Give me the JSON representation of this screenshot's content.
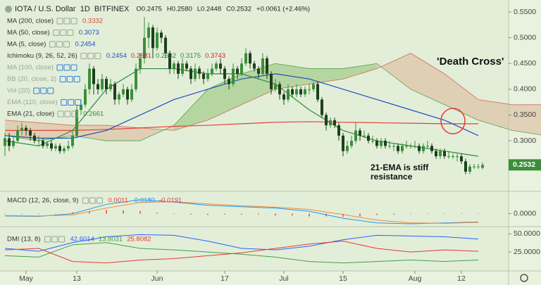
{
  "chart_data": {
    "type": "candlestick",
    "title": "IOTA / U.S. Dollar  1D  BITFINEX",
    "ohlc_header": [
      "O0.2475",
      "H0.2580",
      "L0.2448",
      "C0.2532",
      "+0.0061 (+2.46%)"
    ],
    "up_color": "#3a8f3a",
    "down_color": "#1d3f1d",
    "xlim": [
      -1,
      119
    ],
    "ylim": [
      0.22,
      0.57
    ],
    "yticks": [
      {
        "value": 0.55,
        "label": "0.5500"
      },
      {
        "value": 0.5,
        "label": "0.5000"
      },
      {
        "value": 0.45,
        "label": "0.4500"
      },
      {
        "value": 0.4,
        "label": "0.4000"
      },
      {
        "value": 0.35,
        "label": "0.3500"
      },
      {
        "value": 0.3,
        "label": "0.3000"
      }
    ],
    "xticks": [
      {
        "value": 5,
        "label": "May"
      },
      {
        "value": 17,
        "label": "13"
      },
      {
        "value": 36,
        "label": "Jun"
      },
      {
        "value": 52,
        "label": "17"
      },
      {
        "value": 66,
        "label": "Jul"
      },
      {
        "value": 80,
        "label": "15"
      },
      {
        "value": 97,
        "label": "Aug"
      },
      {
        "value": 108,
        "label": "12"
      }
    ],
    "candles": [
      [
        0.29,
        0.315,
        0.27,
        0.305
      ],
      [
        0.305,
        0.315,
        0.28,
        0.29
      ],
      [
        0.29,
        0.31,
        0.285,
        0.3
      ],
      [
        0.3,
        0.33,
        0.295,
        0.32
      ],
      [
        0.32,
        0.335,
        0.31,
        0.325
      ],
      [
        0.325,
        0.33,
        0.31,
        0.32
      ],
      [
        0.32,
        0.325,
        0.3,
        0.31
      ],
      [
        0.31,
        0.315,
        0.295,
        0.3
      ],
      [
        0.3,
        0.31,
        0.29,
        0.3
      ],
      [
        0.3,
        0.305,
        0.285,
        0.29
      ],
      [
        0.29,
        0.3,
        0.285,
        0.295
      ],
      [
        0.295,
        0.3,
        0.28,
        0.285
      ],
      [
        0.285,
        0.295,
        0.28,
        0.29
      ],
      [
        0.29,
        0.295,
        0.275,
        0.28
      ],
      [
        0.28,
        0.29,
        0.275,
        0.285
      ],
      [
        0.285,
        0.3,
        0.28,
        0.29
      ],
      [
        0.29,
        0.32,
        0.285,
        0.31
      ],
      [
        0.31,
        0.37,
        0.305,
        0.36
      ],
      [
        0.36,
        0.38,
        0.35,
        0.37
      ],
      [
        0.37,
        0.41,
        0.365,
        0.4
      ],
      [
        0.4,
        0.45,
        0.39,
        0.44
      ],
      [
        0.44,
        0.445,
        0.39,
        0.41
      ],
      [
        0.41,
        0.42,
        0.39,
        0.4
      ],
      [
        0.4,
        0.43,
        0.395,
        0.42
      ],
      [
        0.42,
        0.425,
        0.39,
        0.4
      ],
      [
        0.4,
        0.42,
        0.395,
        0.41
      ],
      [
        0.41,
        0.415,
        0.37,
        0.38
      ],
      [
        0.38,
        0.395,
        0.37,
        0.39
      ],
      [
        0.39,
        0.41,
        0.385,
        0.4
      ],
      [
        0.4,
        0.405,
        0.37,
        0.38
      ],
      [
        0.38,
        0.41,
        0.375,
        0.4
      ],
      [
        0.4,
        0.45,
        0.395,
        0.44
      ],
      [
        0.44,
        0.47,
        0.43,
        0.46
      ],
      [
        0.46,
        0.54,
        0.45,
        0.5
      ],
      [
        0.5,
        0.53,
        0.48,
        0.52
      ],
      [
        0.52,
        0.525,
        0.46,
        0.48
      ],
      [
        0.48,
        0.52,
        0.475,
        0.51
      ],
      [
        0.51,
        0.515,
        0.49,
        0.5
      ],
      [
        0.5,
        0.505,
        0.46,
        0.47
      ],
      [
        0.47,
        0.475,
        0.43,
        0.44
      ],
      [
        0.44,
        0.455,
        0.43,
        0.45
      ],
      [
        0.45,
        0.455,
        0.42,
        0.43
      ],
      [
        0.43,
        0.46,
        0.425,
        0.45
      ],
      [
        0.45,
        0.455,
        0.435,
        0.44
      ],
      [
        0.44,
        0.445,
        0.41,
        0.42
      ],
      [
        0.42,
        0.45,
        0.415,
        0.44
      ],
      [
        0.44,
        0.445,
        0.42,
        0.43
      ],
      [
        0.43,
        0.435,
        0.41,
        0.42
      ],
      [
        0.42,
        0.44,
        0.415,
        0.43
      ],
      [
        0.43,
        0.45,
        0.425,
        0.44
      ],
      [
        0.44,
        0.455,
        0.435,
        0.45
      ],
      [
        0.45,
        0.46,
        0.43,
        0.44
      ],
      [
        0.44,
        0.445,
        0.41,
        0.42
      ],
      [
        0.42,
        0.425,
        0.4,
        0.41
      ],
      [
        0.41,
        0.45,
        0.405,
        0.44
      ],
      [
        0.44,
        0.445,
        0.42,
        0.43
      ],
      [
        0.43,
        0.46,
        0.425,
        0.45
      ],
      [
        0.45,
        0.48,
        0.445,
        0.47
      ],
      [
        0.47,
        0.475,
        0.44,
        0.45
      ],
      [
        0.45,
        0.455,
        0.435,
        0.44
      ],
      [
        0.44,
        0.445,
        0.42,
        0.43
      ],
      [
        0.43,
        0.47,
        0.425,
        0.46
      ],
      [
        0.46,
        0.465,
        0.42,
        0.43
      ],
      [
        0.43,
        0.435,
        0.39,
        0.4
      ],
      [
        0.4,
        0.42,
        0.395,
        0.41
      ],
      [
        0.41,
        0.415,
        0.38,
        0.39
      ],
      [
        0.39,
        0.395,
        0.37,
        0.38
      ],
      [
        0.38,
        0.41,
        0.375,
        0.4
      ],
      [
        0.4,
        0.405,
        0.385,
        0.39
      ],
      [
        0.39,
        0.41,
        0.385,
        0.4
      ],
      [
        0.4,
        0.405,
        0.385,
        0.39
      ],
      [
        0.39,
        0.405,
        0.385,
        0.4
      ],
      [
        0.4,
        0.41,
        0.39,
        0.4
      ],
      [
        0.4,
        0.415,
        0.395,
        0.41
      ],
      [
        0.41,
        0.415,
        0.375,
        0.38
      ],
      [
        0.38,
        0.385,
        0.345,
        0.35
      ],
      [
        0.35,
        0.355,
        0.32,
        0.33
      ],
      [
        0.33,
        0.345,
        0.325,
        0.34
      ],
      [
        0.34,
        0.345,
        0.325,
        0.33
      ],
      [
        0.33,
        0.335,
        0.3,
        0.31
      ],
      [
        0.31,
        0.315,
        0.27,
        0.28
      ],
      [
        0.28,
        0.3,
        0.275,
        0.29
      ],
      [
        0.29,
        0.31,
        0.285,
        0.3
      ],
      [
        0.3,
        0.335,
        0.295,
        0.32
      ],
      [
        0.32,
        0.325,
        0.3,
        0.31
      ],
      [
        0.31,
        0.32,
        0.305,
        0.31
      ],
      [
        0.31,
        0.315,
        0.295,
        0.3
      ],
      [
        0.3,
        0.31,
        0.295,
        0.3
      ],
      [
        0.3,
        0.305,
        0.285,
        0.29
      ],
      [
        0.29,
        0.305,
        0.285,
        0.3
      ],
      [
        0.3,
        0.305,
        0.285,
        0.29
      ],
      [
        0.29,
        0.3,
        0.285,
        0.29
      ],
      [
        0.29,
        0.295,
        0.28,
        0.29
      ],
      [
        0.29,
        0.295,
        0.275,
        0.28
      ],
      [
        0.28,
        0.295,
        0.275,
        0.29
      ],
      [
        0.29,
        0.3,
        0.285,
        0.29
      ],
      [
        0.29,
        0.295,
        0.285,
        0.29
      ],
      [
        0.29,
        0.3,
        0.285,
        0.29
      ],
      [
        0.29,
        0.295,
        0.275,
        0.28
      ],
      [
        0.28,
        0.295,
        0.275,
        0.29
      ],
      [
        0.29,
        0.3,
        0.285,
        0.29
      ],
      [
        0.29,
        0.295,
        0.275,
        0.28
      ],
      [
        0.28,
        0.285,
        0.265,
        0.27
      ],
      [
        0.27,
        0.285,
        0.265,
        0.28
      ],
      [
        0.28,
        0.285,
        0.265,
        0.27
      ],
      [
        0.27,
        0.28,
        0.265,
        0.27
      ],
      [
        0.27,
        0.275,
        0.265,
        0.27
      ],
      [
        0.27,
        0.275,
        0.26,
        0.27
      ],
      [
        0.27,
        0.275,
        0.255,
        0.26
      ],
      [
        0.26,
        0.265,
        0.235,
        0.24
      ],
      [
        0.24,
        0.255,
        0.235,
        0.25
      ],
      [
        0.25,
        0.255,
        0.245,
        0.25
      ],
      [
        0.25,
        0.255,
        0.245,
        0.25
      ],
      [
        0.2475,
        0.258,
        0.2448,
        0.2532
      ]
    ],
    "cloud": {
      "x": [
        0,
        8,
        16,
        24,
        32,
        40,
        48,
        56,
        64,
        72,
        80,
        88,
        96,
        104,
        112,
        120,
        128
      ],
      "span_a": [
        0.31,
        0.3,
        0.31,
        0.3,
        0.3,
        0.33,
        0.4,
        0.43,
        0.45,
        0.44,
        0.44,
        0.45,
        0.4,
        0.37,
        0.34,
        0.32,
        0.31
      ],
      "span_b": [
        0.34,
        0.335,
        0.33,
        0.33,
        0.325,
        0.32,
        0.34,
        0.37,
        0.4,
        0.41,
        0.42,
        0.44,
        0.47,
        0.43,
        0.38,
        0.37,
        0.37
      ],
      "up_color": "#7fb85f",
      "down_color": "#d9a98a",
      "a_color": "#5aa04a",
      "b_color": "#d46a5a"
    },
    "lines": [
      {
        "color": "#e0413a",
        "x": [
          0,
          8,
          16,
          24,
          32,
          40,
          48,
          56,
          64,
          72,
          80,
          88,
          96,
          104,
          112
        ],
        "values": [
          0.32,
          0.32,
          0.32,
          0.322,
          0.325,
          0.328,
          0.33,
          0.333,
          0.336,
          0.337,
          0.336,
          0.335,
          0.334,
          0.333,
          0.333
        ]
      },
      {
        "color": "#1e4fc2",
        "x": [
          0,
          8,
          16,
          24,
          32,
          40,
          48,
          56,
          64,
          72,
          80,
          88,
          96,
          104,
          112
        ],
        "values": [
          0.31,
          0.305,
          0.305,
          0.32,
          0.35,
          0.38,
          0.4,
          0.42,
          0.43,
          0.42,
          0.4,
          0.38,
          0.36,
          0.34,
          0.31
        ]
      },
      {
        "color": "#2e8b3a",
        "x": [
          0,
          8,
          16,
          24,
          32,
          40,
          48,
          56,
          64,
          72,
          80,
          88,
          96,
          104,
          112
        ],
        "values": [
          0.3,
          0.29,
          0.32,
          0.4,
          0.44,
          0.44,
          0.43,
          0.43,
          0.41,
          0.36,
          0.32,
          0.3,
          0.29,
          0.28,
          0.27
        ]
      }
    ],
    "indicators": [
      {
        "name": "MA (200, close)",
        "readings": [
          "0.3332"
        ],
        "colors": [
          "#e0413a"
        ],
        "hidden": false
      },
      {
        "name": "MA (50, close)",
        "readings": [
          "0.3073"
        ],
        "colors": [
          "#1e4fc2"
        ],
        "hidden": false
      },
      {
        "name": "MA (5, close)",
        "readings": [
          "0.2454"
        ],
        "colors": [
          "#1e4fc2"
        ],
        "hidden": false
      },
      {
        "name": "Ichimoku (9, 26, 52, 26)",
        "readings": [
          "0.2454",
          "0.2681",
          "0.2532",
          "0.3175",
          "0.3743"
        ],
        "colors": [
          "#1e4fc2",
          "#c62828",
          "#2e8b3a",
          "#2e8b3a",
          "#c62828"
        ],
        "hidden": false
      },
      {
        "name": "MA (100, close)",
        "readings": [],
        "colors": [],
        "hidden": true
      },
      {
        "name": "BB (20, close, 2)",
        "readings": [],
        "colors": [],
        "hidden": true
      },
      {
        "name": "Vol (20)",
        "readings": [],
        "colors": [],
        "hidden": true
      },
      {
        "name": "EMA (110, close)",
        "readings": [],
        "colors": [],
        "hidden": true
      },
      {
        "name": "EMA (21, close)",
        "readings": [
          "0.2661"
        ],
        "colors": [
          "#2e8b3a"
        ],
        "hidden": false
      }
    ],
    "annotations": [
      "'Death Cross'",
      "21-EMA is stiff resistance"
    ],
    "macd": {
      "name": "MACD (12, 26, close, 9)",
      "readings": [
        "0.0011",
        "-0.0180",
        "-0.0191"
      ],
      "colors": [
        "#e0413a",
        "#2196f3",
        "#e0413a"
      ],
      "ylim": [
        -0.025,
        0.045
      ],
      "yticks": [
        {
          "value": 0,
          "label": "0.0000"
        }
      ],
      "x": [
        0,
        8,
        16,
        24,
        32,
        40,
        48,
        56,
        64,
        72,
        80,
        88,
        96,
        104,
        112
      ],
      "macd": [
        -0.005,
        -0.006,
        0.0,
        0.02,
        0.03,
        0.025,
        0.018,
        0.015,
        0.012,
        0.005,
        -0.01,
        -0.02,
        -0.022,
        -0.02,
        -0.018
      ],
      "signal": [
        -0.004,
        -0.005,
        -0.003,
        0.012,
        0.024,
        0.026,
        0.021,
        0.017,
        0.014,
        0.009,
        -0.002,
        -0.014,
        -0.02,
        -0.021,
        -0.019
      ],
      "macd_color": "#2196f3",
      "signal_color": "#f08a3c",
      "hist_color": "#e0413a",
      "hist_x": [
        0,
        4,
        8,
        12,
        16,
        20,
        24,
        28,
        32,
        36,
        40,
        44,
        48,
        52,
        56,
        60,
        64,
        68,
        72,
        76,
        80,
        84,
        88,
        92,
        96,
        100,
        104,
        108,
        112
      ],
      "hist": [
        -0.001,
        -0.001,
        -0.001,
        0.0,
        0.003,
        0.006,
        0.008,
        0.007,
        0.006,
        0.002,
        -0.001,
        -0.002,
        -0.003,
        -0.002,
        -0.002,
        -0.002,
        -0.004,
        -0.004,
        -0.006,
        -0.006,
        -0.007,
        -0.006,
        -0.003,
        -0.002,
        0.0,
        0.001,
        0.001,
        0.001,
        0.001
      ]
    },
    "dmi": {
      "name": "DMI (13, 8)",
      "readings": [
        "42.6014",
        "13.8031",
        "25.8082"
      ],
      "colors": [
        "#2962ff",
        "#43a047",
        "#e53935"
      ],
      "ylim": [
        0,
        60
      ],
      "yticks": [
        {
          "value": 50,
          "label": "50.0000"
        },
        {
          "value": 25,
          "label": "25.0000"
        }
      ],
      "x": [
        0,
        8,
        16,
        24,
        32,
        40,
        48,
        56,
        64,
        72,
        80,
        88,
        96,
        104,
        112
      ],
      "lines": [
        {
          "color": "#2962ff",
          "values": [
            30,
            26,
            38,
            46,
            49,
            48,
            40,
            30,
            28,
            33,
            42,
            48,
            47,
            46,
            43
          ]
        },
        {
          "color": "#43a047",
          "values": [
            20,
            18,
            35,
            38,
            30,
            28,
            25,
            22,
            18,
            12,
            10,
            12,
            14,
            12,
            14
          ]
        },
        {
          "color": "#e53935",
          "values": [
            28,
            30,
            12,
            10,
            14,
            16,
            20,
            24,
            30,
            36,
            40,
            30,
            25,
            28,
            26
          ]
        }
      ]
    }
  }
}
